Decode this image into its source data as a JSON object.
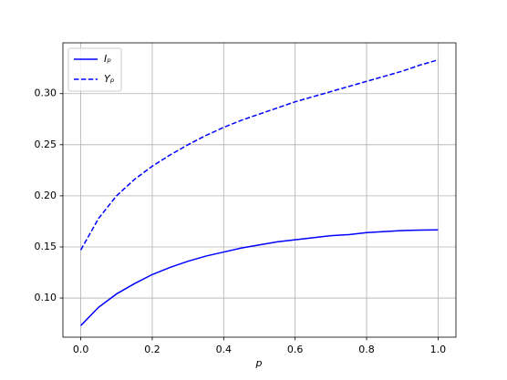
{
  "chart_data": {
    "type": "line",
    "xlabel": "p",
    "x": [
      0,
      0.05,
      0.1,
      0.15,
      0.2,
      0.25,
      0.3,
      0.35,
      0.4,
      0.45,
      0.5,
      0.55,
      0.6,
      0.65,
      0.7,
      0.75,
      0.8,
      0.85,
      0.9,
      0.95,
      1.0
    ],
    "series": [
      {
        "name": "Iₚ",
        "color": "#0000ff",
        "linestyle": "solid",
        "values": [
          0.073,
          0.091,
          0.104,
          0.114,
          0.123,
          0.13,
          0.136,
          0.141,
          0.145,
          0.149,
          0.152,
          0.155,
          0.157,
          0.159,
          0.161,
          0.162,
          0.164,
          0.165,
          0.166,
          0.1665,
          0.1667
        ]
      },
      {
        "name": "Yₚ",
        "color": "#0000ff",
        "linestyle": "dashed",
        "values": [
          0.147,
          0.178,
          0.2,
          0.216,
          0.229,
          0.24,
          0.25,
          0.259,
          0.267,
          0.274,
          0.28,
          0.286,
          0.292,
          0.297,
          0.302,
          0.307,
          0.312,
          0.317,
          0.322,
          0.328,
          0.333
        ]
      }
    ],
    "xlim": [
      -0.05,
      1.05
    ],
    "xticks": [
      {
        "value": 0,
        "label": "0.0"
      },
      0.2,
      0.4,
      0.6,
      0.8,
      {
        "value": 1,
        "label": "1.0"
      }
    ],
    "ylim": [
      0.0617,
      0.3497
    ],
    "yticks": [
      {
        "value": 0.1,
        "label": "0.10"
      },
      {
        "value": 0.15,
        "label": "0.15"
      },
      {
        "value": 0.2,
        "label": "0.20"
      },
      {
        "value": 0.25,
        "label": "0.25"
      },
      {
        "value": 0.3,
        "label": "0.30"
      }
    ],
    "grid": true,
    "legend": "upper left"
  }
}
